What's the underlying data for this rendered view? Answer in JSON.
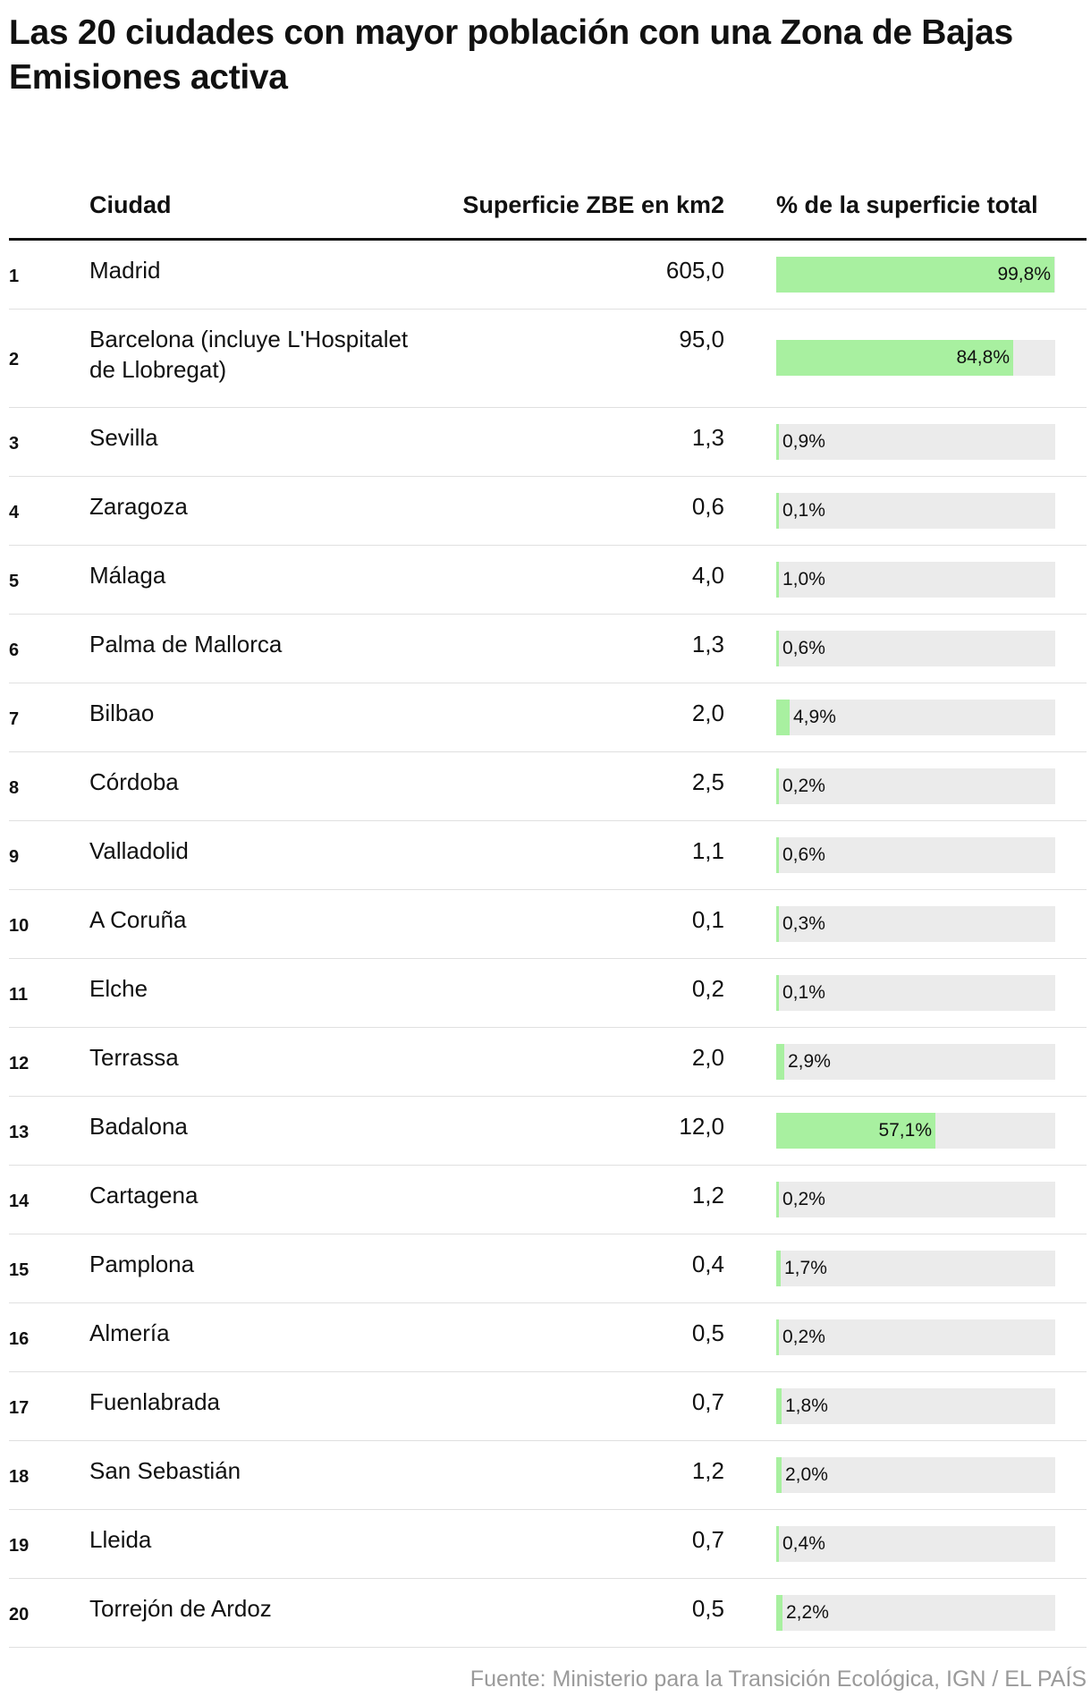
{
  "chart_data": {
    "type": "table",
    "title": "Las 20 ciudades con mayor población con una Zona de Bajas Emisiones activa",
    "columns": {
      "city": "Ciudad",
      "area": "Superficie ZBE en km2",
      "pct": "% de la superficie total"
    },
    "rows": [
      {
        "rank": "1",
        "city": "Madrid",
        "area": "605,0",
        "pct_label": "99,8%",
        "pct": 99.8
      },
      {
        "rank": "2",
        "city": "Barcelona (incluye L'Hospitalet de Llobregat)",
        "area": "95,0",
        "pct_label": "84,8%",
        "pct": 84.8
      },
      {
        "rank": "3",
        "city": "Sevilla",
        "area": "1,3",
        "pct_label": "0,9%",
        "pct": 0.9
      },
      {
        "rank": "4",
        "city": "Zaragoza",
        "area": "0,6",
        "pct_label": "0,1%",
        "pct": 0.1
      },
      {
        "rank": "5",
        "city": "Málaga",
        "area": "4,0",
        "pct_label": "1,0%",
        "pct": 1.0
      },
      {
        "rank": "6",
        "city": "Palma de Mallorca",
        "area": "1,3",
        "pct_label": "0,6%",
        "pct": 0.6
      },
      {
        "rank": "7",
        "city": "Bilbao",
        "area": "2,0",
        "pct_label": "4,9%",
        "pct": 4.9
      },
      {
        "rank": "8",
        "city": "Córdoba",
        "area": "2,5",
        "pct_label": "0,2%",
        "pct": 0.2
      },
      {
        "rank": "9",
        "city": "Valladolid",
        "area": "1,1",
        "pct_label": "0,6%",
        "pct": 0.6
      },
      {
        "rank": "10",
        "city": "A Coruña",
        "area": "0,1",
        "pct_label": "0,3%",
        "pct": 0.3
      },
      {
        "rank": "11",
        "city": "Elche",
        "area": "0,2",
        "pct_label": "0,1%",
        "pct": 0.1
      },
      {
        "rank": "12",
        "city": "Terrassa",
        "area": "2,0",
        "pct_label": "2,9%",
        "pct": 2.9
      },
      {
        "rank": "13",
        "city": "Badalona",
        "area": "12,0",
        "pct_label": "57,1%",
        "pct": 57.1
      },
      {
        "rank": "14",
        "city": "Cartagena",
        "area": "1,2",
        "pct_label": "0,2%",
        "pct": 0.2
      },
      {
        "rank": "15",
        "city": "Pamplona",
        "area": "0,4",
        "pct_label": "1,7%",
        "pct": 1.7
      },
      {
        "rank": "16",
        "city": "Almería",
        "area": "0,5",
        "pct_label": "0,2%",
        "pct": 0.2
      },
      {
        "rank": "17",
        "city": "Fuenlabrada",
        "area": "0,7",
        "pct_label": "1,8%",
        "pct": 1.8
      },
      {
        "rank": "18",
        "city": "San Sebastián",
        "area": "1,2",
        "pct_label": "2,0%",
        "pct": 2.0
      },
      {
        "rank": "19",
        "city": "Lleida",
        "area": "0,7",
        "pct_label": "0,4%",
        "pct": 0.4
      },
      {
        "rank": "20",
        "city": "Torrejón de Ardoz",
        "area": "0,5",
        "pct_label": "2,2%",
        "pct": 2.2
      }
    ],
    "source": "Fuente: Ministerio para la Transición Ecológica, IGN / EL PAÍS",
    "colors": {
      "bar_fill": "#a8f0a0",
      "bar_track": "#ebebeb",
      "text": "#111111",
      "source_text": "#9a9a9a"
    },
    "pct_range": [
      0,
      100
    ]
  }
}
